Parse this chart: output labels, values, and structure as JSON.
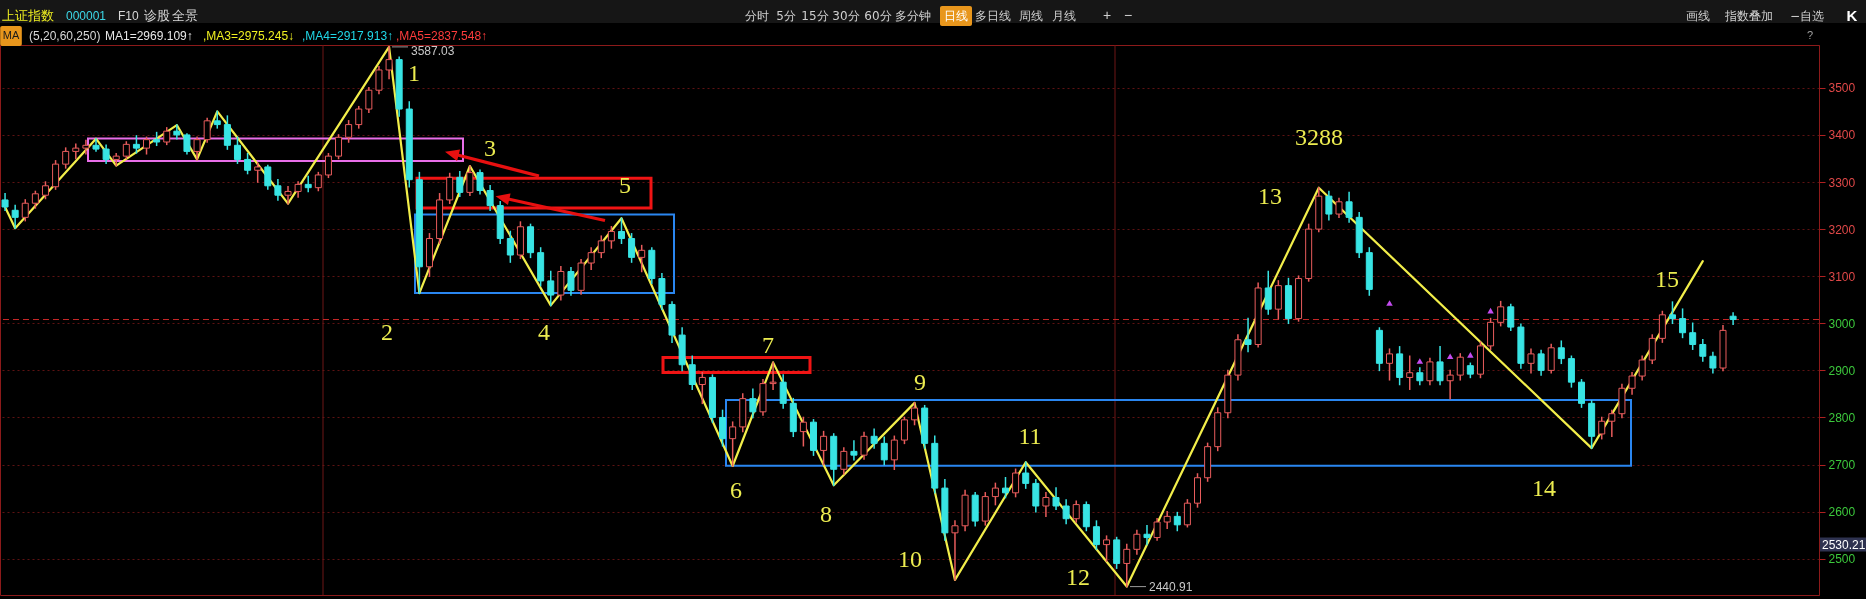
{
  "chart_data": {
    "type": "candlestick",
    "title": "上证指数",
    "subtitle": "000001",
    "ylim": [
      2423,
      3591
    ],
    "yticks": [
      2500,
      2600,
      2700,
      2800,
      2900,
      3000,
      3100,
      3200,
      3300,
      3400,
      3500
    ],
    "tick_labels": "y",
    "grid": "y",
    "categories": [
      null,
      null,
      null,
      null,
      null,
      null,
      null,
      null,
      null,
      null,
      null,
      null,
      null,
      null,
      null,
      null,
      null,
      null,
      null,
      null,
      null,
      null,
      null,
      null,
      null,
      null,
      null,
      null,
      null,
      null,
      null,
      null,
      null,
      null,
      null,
      null,
      null,
      null,
      null,
      null,
      null,
      null,
      null,
      null,
      null,
      null,
      null,
      null,
      null,
      null,
      null,
      null,
      null,
      null,
      null,
      null,
      null,
      null,
      null,
      null,
      null,
      null,
      null,
      null,
      null,
      null,
      null,
      null,
      null,
      null,
      null,
      null,
      null,
      null,
      null,
      null,
      null,
      null,
      null,
      null,
      null,
      null,
      null,
      null,
      null,
      null,
      null,
      null,
      null,
      null,
      null,
      null,
      null,
      null,
      null,
      null,
      null,
      null,
      null,
      null,
      null,
      null,
      null,
      null,
      null,
      null,
      null,
      null,
      null,
      null,
      null,
      null,
      null,
      null,
      null,
      null,
      null,
      null,
      null,
      null,
      null,
      null,
      null,
      null,
      null,
      null,
      null,
      null,
      null,
      null,
      null,
      null,
      null,
      null,
      null,
      null,
      null,
      null,
      null,
      null,
      null,
      null,
      null,
      null,
      null,
      null,
      null,
      null,
      null,
      null,
      null,
      null,
      null,
      null,
      null,
      null,
      null,
      null,
      null,
      null,
      null,
      null,
      null,
      null,
      null,
      null,
      null,
      null,
      null,
      null,
      null,
      null,
      null,
      null,
      null,
      null,
      null,
      null,
      null,
      null
    ],
    "ohlc": [
      [
        3262,
        3275,
        3240,
        3247
      ],
      [
        3240,
        3250,
        3202,
        3225
      ],
      [
        3225,
        3262,
        3218,
        3255
      ],
      [
        3255,
        3280,
        3245,
        3275
      ],
      [
        3272,
        3300,
        3265,
        3292
      ],
      [
        3290,
        3345,
        3285,
        3338
      ],
      [
        3338,
        3372,
        3330,
        3365
      ],
      [
        3365,
        3380,
        3350,
        3372
      ],
      [
        3372,
        3388,
        3360,
        3378
      ],
      [
        3378,
        3392,
        3366,
        3370
      ],
      [
        3370,
        3378,
        3340,
        3348
      ],
      [
        3348,
        3360,
        3335,
        3355
      ],
      [
        3355,
        3385,
        3350,
        3380
      ],
      [
        3380,
        3398,
        3362,
        3372
      ],
      [
        3372,
        3395,
        3360,
        3390
      ],
      [
        3390,
        3405,
        3378,
        3385
      ],
      [
        3385,
        3415,
        3380,
        3408
      ],
      [
        3408,
        3421,
        3392,
        3400
      ],
      [
        3400,
        3402,
        3360,
        3365
      ],
      [
        3365,
        3395,
        3348,
        3390
      ],
      [
        3390,
        3435,
        3385,
        3430
      ],
      [
        3430,
        3450,
        3415,
        3422
      ],
      [
        3422,
        3440,
        3370,
        3378
      ],
      [
        3378,
        3395,
        3340,
        3348
      ],
      [
        3348,
        3360,
        3318,
        3325
      ],
      [
        3325,
        3340,
        3300,
        3332
      ],
      [
        3332,
        3335,
        3285,
        3292
      ],
      [
        3292,
        3305,
        3262,
        3272
      ],
      [
        3272,
        3290,
        3254,
        3280
      ],
      [
        3280,
        3300,
        3268,
        3295
      ],
      [
        3295,
        3312,
        3280,
        3288
      ],
      [
        3288,
        3320,
        3282,
        3315
      ],
      [
        3315,
        3360,
        3310,
        3355
      ],
      [
        3355,
        3400,
        3350,
        3395
      ],
      [
        3395,
        3430,
        3385,
        3422
      ],
      [
        3422,
        3460,
        3415,
        3455
      ],
      [
        3455,
        3500,
        3448,
        3495
      ],
      [
        3495,
        3545,
        3488,
        3538
      ],
      [
        3538,
        3587.03,
        3520,
        3560
      ],
      [
        3560,
        3565,
        3440,
        3455
      ],
      [
        3455,
        3470,
        3290,
        3305
      ],
      [
        3305,
        3320,
        3064,
        3120
      ],
      [
        3120,
        3190,
        3100,
        3180
      ],
      [
        3180,
        3275,
        3170,
        3262
      ],
      [
        3262,
        3318,
        3255,
        3310
      ],
      [
        3310,
        3322,
        3270,
        3278
      ],
      [
        3278,
        3334,
        3272,
        3320
      ],
      [
        3320,
        3325,
        3275,
        3282
      ],
      [
        3282,
        3292,
        3240,
        3250
      ],
      [
        3250,
        3258,
        3170,
        3180
      ],
      [
        3180,
        3195,
        3130,
        3145
      ],
      [
        3145,
        3215,
        3138,
        3205
      ],
      [
        3205,
        3210,
        3140,
        3150
      ],
      [
        3150,
        3160,
        3080,
        3090
      ],
      [
        3090,
        3110,
        3038,
        3060
      ],
      [
        3060,
        3120,
        3050,
        3110
      ],
      [
        3110,
        3118,
        3060,
        3070
      ],
      [
        3070,
        3135,
        3062,
        3128
      ],
      [
        3128,
        3160,
        3115,
        3150
      ],
      [
        3150,
        3185,
        3140,
        3175
      ],
      [
        3175,
        3205,
        3160,
        3195
      ],
      [
        3195,
        3223,
        3170,
        3180
      ],
      [
        3180,
        3190,
        3130,
        3140
      ],
      [
        3140,
        3165,
        3110,
        3155
      ],
      [
        3155,
        3160,
        3085,
        3095
      ],
      [
        3095,
        3105,
        3030,
        3040
      ],
      [
        3040,
        3045,
        2960,
        2975
      ],
      [
        2975,
        2990,
        2900,
        2912
      ],
      [
        2912,
        2930,
        2860,
        2870
      ],
      [
        2870,
        2895,
        2830,
        2885
      ],
      [
        2885,
        2890,
        2790,
        2800
      ],
      [
        2800,
        2815,
        2740,
        2755
      ],
      [
        2755,
        2790,
        2697,
        2780
      ],
      [
        2780,
        2850,
        2770,
        2840
      ],
      [
        2840,
        2860,
        2800,
        2812
      ],
      [
        2812,
        2880,
        2805,
        2872
      ],
      [
        2872,
        2917,
        2860,
        2875
      ],
      [
        2875,
        2890,
        2820,
        2830
      ],
      [
        2830,
        2840,
        2760,
        2770
      ],
      [
        2770,
        2800,
        2740,
        2790
      ],
      [
        2790,
        2795,
        2720,
        2730
      ],
      [
        2730,
        2770,
        2700,
        2760
      ],
      [
        2760,
        2765,
        2656,
        2690
      ],
      [
        2690,
        2735,
        2680,
        2728
      ],
      [
        2728,
        2750,
        2710,
        2720
      ],
      [
        2720,
        2768,
        2712,
        2760
      ],
      [
        2760,
        2775,
        2735,
        2745
      ],
      [
        2745,
        2758,
        2700,
        2710
      ],
      [
        2710,
        2760,
        2690,
        2752
      ],
      [
        2752,
        2800,
        2745,
        2795
      ],
      [
        2795,
        2831,
        2785,
        2820
      ],
      [
        2820,
        2825,
        2735,
        2745
      ],
      [
        2745,
        2760,
        2640,
        2650
      ],
      [
        2650,
        2668,
        2540,
        2555
      ],
      [
        2555,
        2580,
        2455,
        2570
      ],
      [
        2570,
        2645,
        2560,
        2635
      ],
      [
        2635,
        2640,
        2570,
        2580
      ],
      [
        2580,
        2640,
        2572,
        2632
      ],
      [
        2632,
        2660,
        2615,
        2650
      ],
      [
        2650,
        2672,
        2630,
        2640
      ],
      [
        2640,
        2690,
        2632,
        2682
      ],
      [
        2682,
        2705,
        2650,
        2660
      ],
      [
        2660,
        2668,
        2600,
        2612
      ],
      [
        2612,
        2640,
        2590,
        2630
      ],
      [
        2630,
        2650,
        2605,
        2612
      ],
      [
        2612,
        2625,
        2575,
        2585
      ],
      [
        2585,
        2622,
        2578,
        2615
      ],
      [
        2615,
        2620,
        2560,
        2568
      ],
      [
        2568,
        2580,
        2520,
        2530
      ],
      [
        2530,
        2548,
        2495,
        2540
      ],
      [
        2540,
        2545,
        2480,
        2490
      ],
      [
        2490,
        2530,
        2440.91,
        2520
      ],
      [
        2520,
        2560,
        2510,
        2552
      ],
      [
        2552,
        2570,
        2530,
        2545
      ],
      [
        2545,
        2585,
        2540,
        2578
      ],
      [
        2578,
        2600,
        2565,
        2590
      ],
      [
        2590,
        2598,
        2560,
        2572
      ],
      [
        2572,
        2625,
        2568,
        2618
      ],
      [
        2618,
        2680,
        2610,
        2672
      ],
      [
        2672,
        2745,
        2665,
        2738
      ],
      [
        2738,
        2820,
        2730,
        2810
      ],
      [
        2810,
        2900,
        2800,
        2890
      ],
      [
        2890,
        2975,
        2880,
        2965
      ],
      [
        2965,
        3010,
        2940,
        2955
      ],
      [
        2955,
        3085,
        2950,
        3075
      ],
      [
        3075,
        3110,
        3020,
        3030
      ],
      [
        3030,
        3090,
        3010,
        3080
      ],
      [
        3080,
        3095,
        3000,
        3010
      ],
      [
        3010,
        3100,
        3005,
        3095
      ],
      [
        3095,
        3210,
        3090,
        3200
      ],
      [
        3200,
        3288,
        3195,
        3270
      ],
      [
        3270,
        3280,
        3220,
        3232
      ],
      [
        3232,
        3265,
        3225,
        3258
      ],
      [
        3258,
        3278,
        3215,
        3225
      ],
      [
        3225,
        3235,
        3140,
        3150
      ],
      [
        3150,
        3160,
        3060,
        3072
      ],
      [
        2985,
        2990,
        2900,
        2915
      ],
      [
        2915,
        2945,
        2880,
        2935
      ],
      [
        2935,
        2950,
        2870,
        2885
      ],
      [
        2885,
        2930,
        2860,
        2895
      ],
      [
        2895,
        2905,
        2870,
        2878
      ],
      [
        2878,
        2925,
        2870,
        2918
      ],
      [
        2918,
        2950,
        2870,
        2878
      ],
      [
        2878,
        2900,
        2840,
        2890
      ],
      [
        2890,
        2935,
        2880,
        2928
      ],
      [
        2910,
        2915,
        2885,
        2892
      ],
      [
        2892,
        2960,
        2885,
        2952
      ],
      [
        2952,
        3010,
        2945,
        3002
      ],
      [
        3002,
        3046,
        2995,
        3035
      ],
      [
        3035,
        3040,
        2985,
        2992
      ],
      [
        2992,
        2998,
        2905,
        2915
      ],
      [
        2915,
        2945,
        2895,
        2935
      ],
      [
        2935,
        2942,
        2890,
        2900
      ],
      [
        2900,
        2955,
        2895,
        2948
      ],
      [
        2948,
        2962,
        2915,
        2925
      ],
      [
        2925,
        2930,
        2865,
        2875
      ],
      [
        2875,
        2880,
        2822,
        2830
      ],
      [
        2830,
        2835,
        2735,
        2760
      ],
      [
        2765,
        2800,
        2755,
        2792
      ],
      [
        2792,
        2815,
        2760,
        2808
      ],
      [
        2808,
        2870,
        2800,
        2862
      ],
      [
        2862,
        2895,
        2850,
        2888
      ],
      [
        2888,
        2930,
        2880,
        2922
      ],
      [
        2922,
        2975,
        2915,
        2968
      ],
      [
        2968,
        3025,
        2960,
        3018
      ],
      [
        3018,
        3045,
        3000,
        3010
      ],
      [
        3010,
        3030,
        2970,
        2980
      ],
      [
        2980,
        3000,
        2945,
        2955
      ],
      [
        2955,
        2965,
        2920,
        2930
      ],
      [
        2930,
        2938,
        2895,
        2905
      ],
      [
        2905,
        2995,
        2900,
        2985
      ],
      [
        3015,
        3022,
        2998,
        3008
      ],
      null,
      null,
      null,
      null,
      null,
      null,
      null,
      null
    ],
    "colors": [
      "#38e4e4",
      "#38e4e4",
      "#e85c5c",
      "#e85c5c",
      "#e85c5c",
      "#e85c5c",
      "#e85c5c",
      "#e85c5c",
      "#e85c5c",
      "#38e4e4",
      "#38e4e4",
      "#e85c5c",
      "#e85c5c",
      "#38e4e4",
      "#e85c5c",
      "#38e4e4",
      "#e85c5c",
      "#38e4e4",
      "#38e4e4",
      "#e85c5c",
      "#e85c5c",
      "#38e4e4",
      "#38e4e4",
      "#38e4e4",
      "#38e4e4",
      "#e85c5c",
      "#38e4e4",
      "#38e4e4",
      "#e85c5c",
      "#e85c5c",
      "#38e4e4",
      "#e85c5c",
      "#e85c5c",
      "#e85c5c",
      "#e85c5c",
      "#e85c5c",
      "#e85c5c",
      "#e85c5c",
      "#e85c5c",
      "#38e4e4",
      "#38e4e4",
      "#38e4e4",
      "#e85c5c",
      "#e85c5c",
      "#e85c5c",
      "#38e4e4",
      "#e85c5c",
      "#38e4e4",
      "#38e4e4",
      "#38e4e4",
      "#38e4e4",
      "#e85c5c",
      "#38e4e4",
      "#38e4e4",
      "#38e4e4",
      "#e85c5c",
      "#38e4e4",
      "#e85c5c",
      "#e85c5c",
      "#e85c5c",
      "#e85c5c",
      "#38e4e4",
      "#38e4e4",
      "#e85c5c",
      "#38e4e4",
      "#38e4e4",
      "#38e4e4",
      "#38e4e4",
      "#38e4e4",
      "#e85c5c",
      "#38e4e4",
      "#38e4e4",
      "#e85c5c",
      "#e85c5c",
      "#38e4e4",
      "#e85c5c",
      "#e85c5c",
      "#38e4e4",
      "#38e4e4",
      "#e85c5c",
      "#38e4e4",
      "#e85c5c",
      "#38e4e4",
      "#e85c5c",
      "#38e4e4",
      "#e85c5c",
      "#38e4e4",
      "#38e4e4",
      "#e85c5c",
      "#e85c5c",
      "#e85c5c",
      "#38e4e4",
      "#38e4e4",
      "#38e4e4",
      "#e85c5c",
      "#e85c5c",
      "#38e4e4",
      "#e85c5c",
      "#e85c5c",
      "#38e4e4",
      "#e85c5c",
      "#38e4e4",
      "#38e4e4",
      "#e85c5c",
      "#38e4e4",
      "#38e4e4",
      "#e85c5c",
      "#38e4e4",
      "#38e4e4",
      "#e85c5c",
      "#38e4e4",
      "#e85c5c",
      "#e85c5c",
      "#38e4e4",
      "#e85c5c",
      "#e85c5c",
      "#38e4e4",
      "#e85c5c",
      "#e85c5c",
      "#e85c5c",
      "#e85c5c",
      "#e85c5c",
      "#e85c5c",
      "#38e4e4",
      "#e85c5c",
      "#38e4e4",
      "#e85c5c",
      "#38e4e4",
      "#e85c5c",
      "#e85c5c",
      "#e85c5c",
      "#38e4e4",
      "#e85c5c",
      "#38e4e4",
      "#38e4e4",
      "#38e4e4",
      "#38e4e4",
      "#e85c5c",
      "#38e4e4",
      "#e85c5c",
      "#38e4e4",
      "#e85c5c",
      "#38e4e4",
      "#e85c5c",
      "#e85c5c",
      "#38e4e4",
      "#e85c5c",
      "#e85c5c",
      "#e85c5c",
      "#38e4e4",
      "#38e4e4",
      "#e85c5c",
      "#38e4e4",
      "#e85c5c",
      "#38e4e4",
      "#38e4e4",
      "#38e4e4",
      "#38e4e4",
      "#e85c5c",
      "#e85c5c",
      "#e85c5c",
      "#e85c5c",
      "#e85c5c",
      "#e85c5c",
      "#e85c5c",
      "#38e4e4",
      "#38e4e4",
      "#38e4e4",
      "#38e4e4",
      "#38e4e4",
      "#e85c5c",
      "#38e4e4",
      null,
      null,
      null,
      null,
      null,
      null,
      null,
      null
    ],
    "series": [
      {
        "type": "line",
        "color": "#f2ee4a",
        "values": [
          3247,
          3202,
          null,
          null,
          null,
          null,
          null,
          null,
          null,
          3392,
          null,
          3335,
          null,
          null,
          null,
          null,
          null,
          3421,
          null,
          3348,
          null,
          3450,
          null,
          null,
          null,
          null,
          null,
          null,
          3254,
          null,
          null,
          null,
          null,
          null,
          null,
          null,
          null,
          null,
          3587.03,
          null,
          null,
          3064,
          null,
          null,
          null,
          null,
          3334,
          null,
          null,
          null,
          null,
          null,
          null,
          null,
          3038,
          null,
          null,
          null,
          null,
          null,
          null,
          3223,
          null,
          null,
          null,
          null,
          null,
          null,
          null,
          null,
          null,
          null,
          2697,
          null,
          null,
          null,
          2917,
          null,
          null,
          null,
          null,
          null,
          2656,
          null,
          null,
          null,
          null,
          null,
          null,
          null,
          2831,
          null,
          null,
          null,
          2455,
          null,
          null,
          null,
          null,
          null,
          null,
          2705,
          null,
          null,
          null,
          null,
          null,
          null,
          null,
          null,
          null,
          2440.91,
          null,
          null,
          null,
          null,
          null,
          null,
          null,
          null,
          null,
          null,
          null,
          null,
          null,
          null,
          null,
          null,
          null,
          null,
          3288,
          null,
          null,
          null,
          null,
          null,
          null,
          null,
          null,
          null,
          null,
          null,
          null,
          null,
          null,
          null,
          null,
          null,
          null,
          null,
          null,
          null,
          null,
          null,
          null,
          null,
          null,
          2735,
          null,
          null,
          null,
          null,
          null,
          null,
          null,
          null,
          null,
          null,
          3132,
          null,
          null,
          null,
          null,
          null,
          null,
          null,
          null,
          null,
          null,
          null
        ]
      },
      {
        "type": "scatter",
        "marker": "triangle",
        "color": "#c44cf0",
        "values": [
          null,
          null,
          null,
          null,
          null,
          null,
          null,
          null,
          null,
          null,
          null,
          null,
          null,
          null,
          null,
          null,
          null,
          null,
          null,
          null,
          null,
          null,
          null,
          null,
          null,
          null,
          null,
          null,
          null,
          null,
          null,
          null,
          null,
          null,
          null,
          null,
          null,
          null,
          null,
          null,
          null,
          null,
          null,
          null,
          null,
          null,
          null,
          null,
          null,
          null,
          null,
          null,
          null,
          null,
          null,
          null,
          null,
          null,
          null,
          null,
          null,
          null,
          null,
          null,
          null,
          null,
          null,
          null,
          null,
          null,
          null,
          null,
          null,
          null,
          null,
          null,
          null,
          null,
          null,
          null,
          null,
          null,
          null,
          null,
          null,
          null,
          null,
          null,
          null,
          null,
          null,
          null,
          null,
          null,
          null,
          null,
          null,
          null,
          null,
          null,
          null,
          null,
          null,
          null,
          null,
          null,
          null,
          null,
          null,
          null,
          null,
          null,
          null,
          null,
          null,
          null,
          null,
          null,
          null,
          null,
          null,
          null,
          null,
          null,
          null,
          null,
          null,
          null,
          null,
          null,
          null,
          null,
          null,
          null,
          null,
          null,
          null,
          3043,
          null,
          null,
          2920,
          null,
          null,
          2930,
          null,
          2933,
          null,
          3027,
          null,
          null,
          null,
          null,
          null,
          null,
          null,
          null,
          null,
          null,
          null,
          null,
          null,
          null,
          null,
          null,
          null,
          null,
          null,
          null,
          null,
          null,
          null,
          null,
          null,
          null,
          null,
          null,
          null,
          null,
          null,
          null
        ]
      }
    ],
    "ref_lines": [
      {
        "axis": "y",
        "value": 3008,
        "color": "#c82828",
        "line_style": "dashed"
      }
    ],
    "annotations": [
      "F10",
      "诊股",
      "全景",
      "分时",
      "5分",
      "15分",
      "30分",
      "60分",
      "多分钟",
      "日线",
      "多日线",
      "周线",
      "月线",
      "+",
      "−",
      "画线",
      "指数叠加",
      "−自选",
      "K",
      "MA",
      "(5,20,60,250)",
      "MA1=2969.109↑",
      ",MA3=2975.245↓",
      ",MA4=2917.913↑",
      ",MA5=2837.548↑",
      "?",
      "1",
      "2",
      "3",
      "4",
      "5",
      "6",
      "7",
      "8",
      "9",
      "10",
      "11",
      "12",
      "13",
      "3288",
      "14",
      "15",
      "2530.21",
      "3587.03",
      "2440.91"
    ]
  }
}
